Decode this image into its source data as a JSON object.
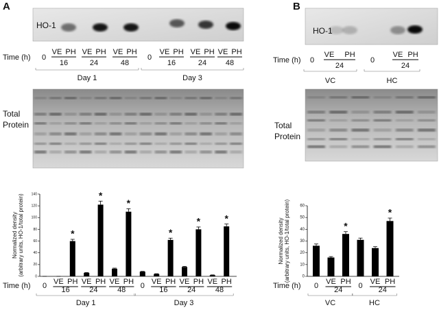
{
  "panels": [
    {
      "letter": "A",
      "blot_label": "HO-1",
      "stain_label": [
        "Total",
        "Protein"
      ]
    },
    {
      "letter": "B",
      "blot_label": "HO-1",
      "stain_label": [
        "Total",
        "Protein"
      ]
    }
  ],
  "chart_data": [
    {
      "type": "bar",
      "ylabel": [
        "Normalized density",
        "(arbitrary units, HO-1/total protein)"
      ],
      "xlabel": "Time (h)",
      "categories": [
        "0",
        "VE",
        "PH",
        "VE",
        "PH",
        "VE",
        "PH",
        "0",
        "VE",
        "PH",
        "VE",
        "PH",
        "VE",
        "PH"
      ],
      "groups": [
        {
          "name": "Day 1",
          "times": [
            "16",
            "24",
            "48"
          ]
        },
        {
          "name": "Day 3",
          "times": [
            "16",
            "24",
            "48"
          ]
        }
      ],
      "values": [
        0,
        0,
        60,
        6,
        122,
        13,
        110,
        8,
        4,
        62,
        16,
        80,
        2,
        85
      ],
      "errors": [
        0,
        0,
        3,
        0.5,
        6,
        1,
        5,
        0.5,
        0.5,
        3,
        1,
        4,
        0.5,
        4
      ],
      "significance_labels": [
        null,
        null,
        "*",
        null,
        "*",
        null,
        "*",
        null,
        null,
        "*",
        null,
        "*",
        null,
        "*"
      ],
      "color": "#000000",
      "ylim": [
        0,
        140
      ],
      "yticks": [
        0,
        20,
        40,
        60,
        80,
        100,
        120,
        140
      ]
    },
    {
      "type": "bar",
      "ylabel": [
        "Normalized density",
        "(arbitrary units, HO-1/total protein)"
      ],
      "xlabel": "Time (h)",
      "categories": [
        "0",
        "VE",
        "PH",
        "0",
        "VE",
        "PH"
      ],
      "groups": [
        {
          "name": "VC",
          "times": [
            "24"
          ]
        },
        {
          "name": "HC",
          "times": [
            "24"
          ]
        }
      ],
      "values": [
        26,
        16,
        36,
        31,
        24,
        47
      ],
      "errors": [
        1.5,
        0.8,
        2,
        1.5,
        1.2,
        2.5
      ],
      "significance_labels": [
        null,
        null,
        "*",
        null,
        null,
        "*"
      ],
      "color": "#000000",
      "ylim": [
        0,
        60
      ],
      "yticks": [
        0,
        10,
        20,
        30,
        40,
        50,
        60
      ]
    }
  ]
}
